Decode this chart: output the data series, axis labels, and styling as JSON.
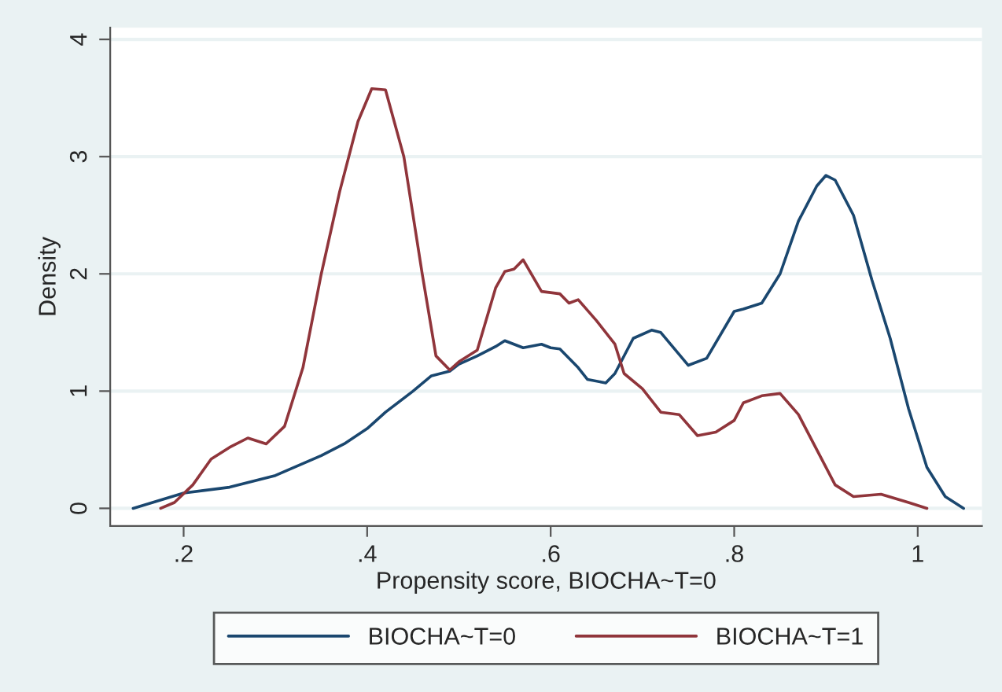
{
  "chart_data": {
    "type": "line",
    "xlabel": "Propensity score, BIOCHA~T=0",
    "ylabel": "Density",
    "xlim": [
      0.12,
      1.07
    ],
    "ylim": [
      -0.15,
      4.1
    ],
    "xticks": [
      {
        "value": 0.2,
        "label": ".2"
      },
      {
        "value": 0.4,
        "label": ".4"
      },
      {
        "value": 0.6,
        "label": ".6"
      },
      {
        "value": 0.8,
        "label": ".8"
      },
      1
    ],
    "yticks": [
      0,
      1,
      2,
      3,
      4
    ],
    "grid": "y",
    "legend": "bottom",
    "marker": "none",
    "line_style": "solid",
    "series": [
      {
        "name": "BIOCHA~T=0",
        "color": "#1a476f",
        "x": [
          0.145,
          0.2,
          0.25,
          0.3,
          0.35,
          0.375,
          0.4,
          0.42,
          0.45,
          0.47,
          0.49,
          0.5,
          0.52,
          0.54,
          0.55,
          0.57,
          0.59,
          0.6,
          0.61,
          0.63,
          0.64,
          0.66,
          0.67,
          0.69,
          0.71,
          0.72,
          0.75,
          0.77,
          0.8,
          0.81,
          0.83,
          0.85,
          0.87,
          0.89,
          0.9,
          0.91,
          0.93,
          0.95,
          0.97,
          0.99,
          1.01,
          1.03,
          1.05
        ],
        "values": [
          0,
          0.13,
          0.18,
          0.28,
          0.45,
          0.55,
          0.68,
          0.82,
          1.0,
          1.13,
          1.17,
          1.23,
          1.3,
          1.38,
          1.43,
          1.37,
          1.4,
          1.37,
          1.36,
          1.2,
          1.1,
          1.07,
          1.15,
          1.45,
          1.52,
          1.5,
          1.22,
          1.28,
          1.68,
          1.7,
          1.75,
          2.0,
          2.45,
          2.75,
          2.84,
          2.8,
          2.5,
          1.95,
          1.45,
          0.85,
          0.35,
          0.1,
          0.0
        ]
      },
      {
        "name": "BIOCHA~T=1",
        "color": "#90353b",
        "x": [
          0.175,
          0.19,
          0.21,
          0.23,
          0.25,
          0.27,
          0.29,
          0.31,
          0.33,
          0.35,
          0.37,
          0.39,
          0.405,
          0.42,
          0.44,
          0.46,
          0.475,
          0.49,
          0.5,
          0.52,
          0.54,
          0.55,
          0.56,
          0.57,
          0.59,
          0.61,
          0.62,
          0.63,
          0.65,
          0.67,
          0.68,
          0.7,
          0.72,
          0.74,
          0.76,
          0.78,
          0.8,
          0.81,
          0.83,
          0.85,
          0.87,
          0.89,
          0.91,
          0.93,
          0.96,
          0.99,
          1.01
        ],
        "values": [
          0,
          0.05,
          0.2,
          0.42,
          0.52,
          0.6,
          0.55,
          0.7,
          1.2,
          2.0,
          2.7,
          3.3,
          3.58,
          3.57,
          3.0,
          2.0,
          1.3,
          1.18,
          1.25,
          1.35,
          1.88,
          2.02,
          2.04,
          2.12,
          1.85,
          1.83,
          1.75,
          1.78,
          1.6,
          1.4,
          1.15,
          1.02,
          0.82,
          0.8,
          0.62,
          0.65,
          0.75,
          0.9,
          0.96,
          0.98,
          0.8,
          0.5,
          0.2,
          0.1,
          0.12,
          0.05,
          0.0
        ]
      }
    ]
  }
}
